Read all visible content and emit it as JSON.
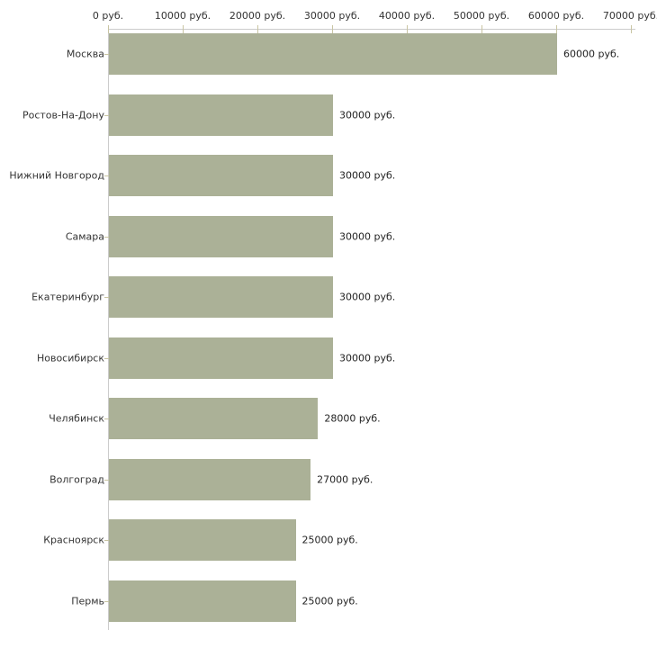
{
  "chart_data": {
    "type": "bar",
    "orientation": "horizontal",
    "title": "",
    "xlabel": "",
    "ylabel": "",
    "categories": [
      "Москва",
      "Ростов-На-Дону",
      "Нижний Новгород",
      "Самара",
      "Екатеринбург",
      "Новосибирск",
      "Челябинск",
      "Волгоград",
      "Красноярск",
      "Пермь"
    ],
    "values": [
      60000,
      30000,
      30000,
      30000,
      30000,
      30000,
      28000,
      27000,
      25000,
      25000
    ],
    "value_labels": [
      "60000 руб.",
      "30000 руб.",
      "30000 руб.",
      "30000 руб.",
      "30000 руб.",
      "30000 руб.",
      "28000 руб.",
      "27000 руб.",
      "25000 руб.",
      "25000 руб."
    ],
    "x_ticks": [
      0,
      10000,
      20000,
      30000,
      40000,
      50000,
      60000,
      70000
    ],
    "x_tick_labels": [
      "0 руб.",
      "10000 руб.",
      "20000 руб.",
      "30000 руб.",
      "40000 руб.",
      "50000 руб.",
      "60000 руб.",
      "70000 руб."
    ],
    "xlim": [
      0,
      70000
    ],
    "grid": false,
    "legend": null,
    "colors": {
      "bar": "#abb197",
      "axis_line": "#cccccc",
      "tick_mark": "#c9c5a3",
      "text": "#333333"
    }
  }
}
